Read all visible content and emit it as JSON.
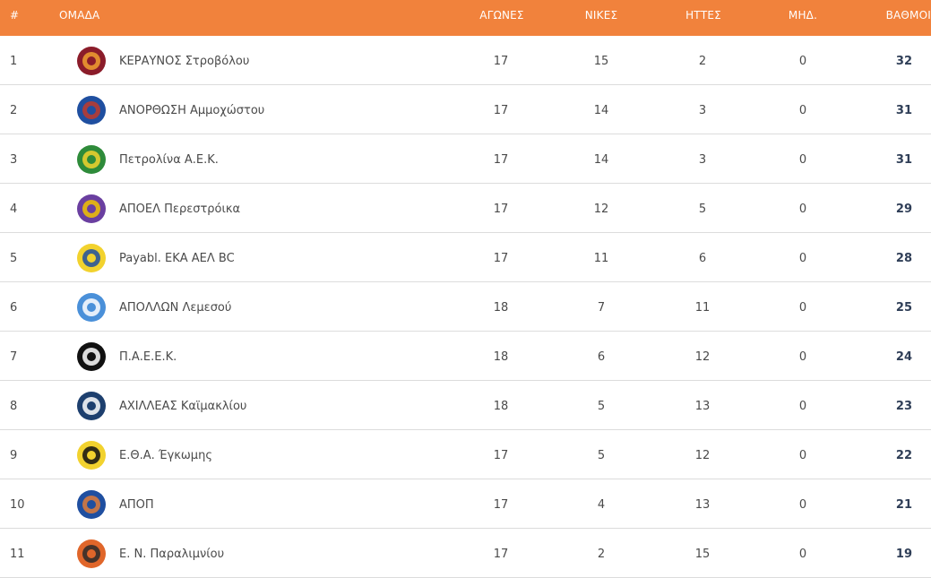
{
  "header": {
    "rank": "#",
    "team": "ΟΜΑΔΑ",
    "played": "ΑΓΩΝΕΣ",
    "wins": "ΝΙΚΕΣ",
    "losses": "ΗΤΤΕΣ",
    "draws": "ΜΗΔ.",
    "points": "ΒΑΘΜΟΙ"
  },
  "colors": {
    "header_bg": "#f1823c",
    "points_text": "#2f3e57",
    "row_border": "#dcdcdc"
  },
  "rows": [
    {
      "rank": "1",
      "team": "ΚΕΡΑΥΝΟΣ Στροβόλου",
      "played": "17",
      "wins": "15",
      "losses": "2",
      "draws": "0",
      "points": "32",
      "logo": "keravnos-logo",
      "logo_color": "#8b1c2a",
      "logo_accent": "#f0a030"
    },
    {
      "rank": "2",
      "team": "ΑΝΟΡΘΩΣΗ Αμμοχώστου",
      "played": "17",
      "wins": "14",
      "losses": "3",
      "draws": "0",
      "points": "31",
      "logo": "anorthosis-logo",
      "logo_color": "#1f4fa0",
      "logo_accent": "#c0392b"
    },
    {
      "rank": "3",
      "team": "Πετρολίνα Α.Ε.Κ.",
      "played": "17",
      "wins": "14",
      "losses": "3",
      "draws": "0",
      "points": "31",
      "logo": "aek-logo",
      "logo_color": "#2e8b3a",
      "logo_accent": "#f2d22e"
    },
    {
      "rank": "4",
      "team": "ΑΠΟΕΛ Περεστρόικα",
      "played": "17",
      "wins": "12",
      "losses": "5",
      "draws": "0",
      "points": "29",
      "logo": "apoel-logo",
      "logo_color": "#6a3fa0",
      "logo_accent": "#f2c300"
    },
    {
      "rank": "5",
      "team": "Payabl. ΕΚΑ ΑΕΛ BC",
      "played": "17",
      "wins": "11",
      "losses": "6",
      "draws": "0",
      "points": "28",
      "logo": "ael-logo",
      "logo_color": "#f2d22e",
      "logo_accent": "#1f4fa0"
    },
    {
      "rank": "6",
      "team": "ΑΠΟΛΛΩΝ Λεμεσού",
      "played": "18",
      "wins": "7",
      "losses": "11",
      "draws": "0",
      "points": "25",
      "logo": "apollon-logo",
      "logo_color": "#4a90d9",
      "logo_accent": "#ffffff"
    },
    {
      "rank": "7",
      "team": "Π.Α.Ε.Ε.Κ.",
      "played": "18",
      "wins": "6",
      "losses": "12",
      "draws": "0",
      "points": "24",
      "logo": "paeek-logo",
      "logo_color": "#111111",
      "logo_accent": "#ffffff"
    },
    {
      "rank": "8",
      "team": "ΑΧΙΛΛΕΑΣ Καϊμακλίου",
      "played": "18",
      "wins": "5",
      "losses": "13",
      "draws": "0",
      "points": "23",
      "logo": "achilleas-logo",
      "logo_color": "#1d3f6e",
      "logo_accent": "#ffffff"
    },
    {
      "rank": "9",
      "team": "Ε.Θ.Α. Έγκωμης",
      "played": "17",
      "wins": "5",
      "losses": "12",
      "draws": "0",
      "points": "22",
      "logo": "etha-logo",
      "logo_color": "#f2d22e",
      "logo_accent": "#111111"
    },
    {
      "rank": "10",
      "team": "ΑΠΟΠ",
      "played": "17",
      "wins": "4",
      "losses": "13",
      "draws": "0",
      "points": "21",
      "logo": "apop-logo",
      "logo_color": "#1f4fa0",
      "logo_accent": "#e07b39"
    },
    {
      "rank": "11",
      "team": "Ε. Ν. Παραλιμνίου",
      "played": "17",
      "wins": "2",
      "losses": "15",
      "draws": "0",
      "points": "19",
      "logo": "enp-logo",
      "logo_color": "#e0662a",
      "logo_accent": "#2a2a2a"
    }
  ]
}
